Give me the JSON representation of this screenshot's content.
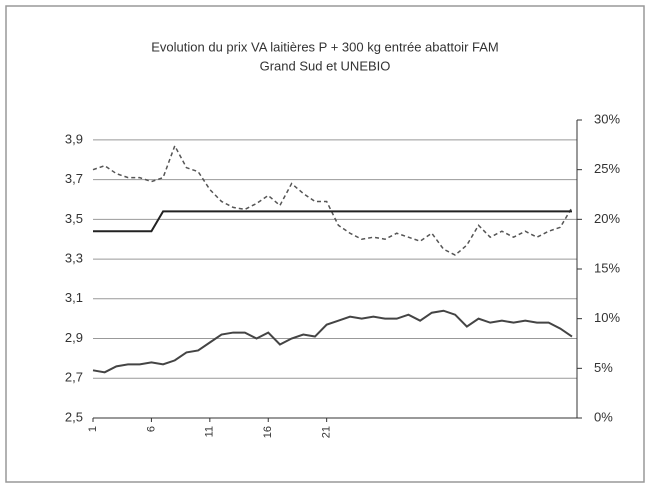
{
  "chart_data": {
    "type": "line",
    "title": "Evolution  du prix VA laitières P + 300 kg entrée abattoir FAM",
    "subtitle": "Grand Sud et UNEBIO",
    "x": [
      1,
      2,
      3,
      4,
      5,
      6,
      7,
      8,
      9,
      10,
      11,
      12,
      13,
      14,
      15,
      16,
      17,
      18,
      19,
      20,
      21,
      22,
      23,
      24,
      25,
      26,
      27,
      28,
      29,
      30,
      31,
      32,
      33,
      34,
      35,
      36,
      37,
      38,
      39,
      40,
      41,
      42
    ],
    "xlim": [
      1,
      42
    ],
    "xticks": [
      1,
      6,
      11,
      16,
      21
    ],
    "ylim": [
      2.5,
      4.0
    ],
    "yticks": [
      {
        "value": 2.5,
        "label": "2,5"
      },
      {
        "value": 2.7,
        "label": "2,7"
      },
      {
        "value": 2.9,
        "label": "2,9"
      },
      {
        "value": 3.1,
        "label": "3,1"
      },
      {
        "value": 3.3,
        "label": "3,3"
      },
      {
        "value": 3.5,
        "label": "3,5"
      },
      {
        "value": 3.7,
        "label": "3,7"
      },
      {
        "value": 3.9,
        "label": "3,9"
      }
    ],
    "y2lim": [
      0,
      30
    ],
    "y2ticks": [
      {
        "value": 0,
        "label": "0%"
      },
      {
        "value": 5,
        "label": "5%"
      },
      {
        "value": 10,
        "label": "10%"
      },
      {
        "value": 15,
        "label": "15%"
      },
      {
        "value": 20,
        "label": "20%"
      },
      {
        "value": 25,
        "label": "25%"
      },
      {
        "value": 30,
        "label": "30%"
      }
    ],
    "grid": true,
    "series": [
      {
        "color": "#555555",
        "dashed": true,
        "values": [
          3.75,
          3.77,
          3.73,
          3.71,
          3.71,
          3.69,
          3.71,
          3.87,
          3.76,
          3.74,
          3.65,
          3.59,
          3.56,
          3.55,
          3.58,
          3.62,
          3.57,
          3.68,
          3.63,
          3.59,
          3.59,
          3.47,
          3.43,
          3.4,
          3.41,
          3.4,
          3.43,
          3.41,
          3.39,
          3.43,
          3.35,
          3.32,
          3.37,
          3.47,
          3.41,
          3.44,
          3.41,
          3.44,
          3.41,
          3.44,
          3.46,
          3.56
        ]
      },
      {
        "color": "#222222",
        "values": [
          3.44,
          3.44,
          3.44,
          3.44,
          3.44,
          3.44,
          3.54,
          3.54,
          3.54,
          3.54,
          3.54,
          3.54,
          3.54,
          3.54,
          3.54,
          3.54,
          3.54,
          3.54,
          3.54,
          3.54,
          3.54,
          3.54,
          3.54,
          3.54,
          3.54,
          3.54,
          3.54,
          3.54,
          3.54,
          3.54,
          3.54,
          3.54,
          3.54,
          3.54,
          3.54,
          3.54,
          3.54,
          3.54,
          3.54,
          3.54,
          3.54,
          3.54
        ]
      },
      {
        "color": "#444444",
        "values": [
          2.74,
          2.73,
          2.76,
          2.77,
          2.77,
          2.78,
          2.77,
          2.79,
          2.83,
          2.84,
          2.88,
          2.92,
          2.93,
          2.93,
          2.9,
          2.93,
          2.87,
          2.9,
          2.92,
          2.91,
          2.97,
          2.99,
          3.01,
          3.0,
          3.01,
          3.0,
          3.0,
          3.02,
          2.99,
          3.03,
          3.04,
          3.02,
          2.96,
          3.0,
          2.98,
          2.99,
          2.98,
          2.99,
          2.98,
          2.98,
          2.95,
          2.91
        ]
      }
    ]
  }
}
